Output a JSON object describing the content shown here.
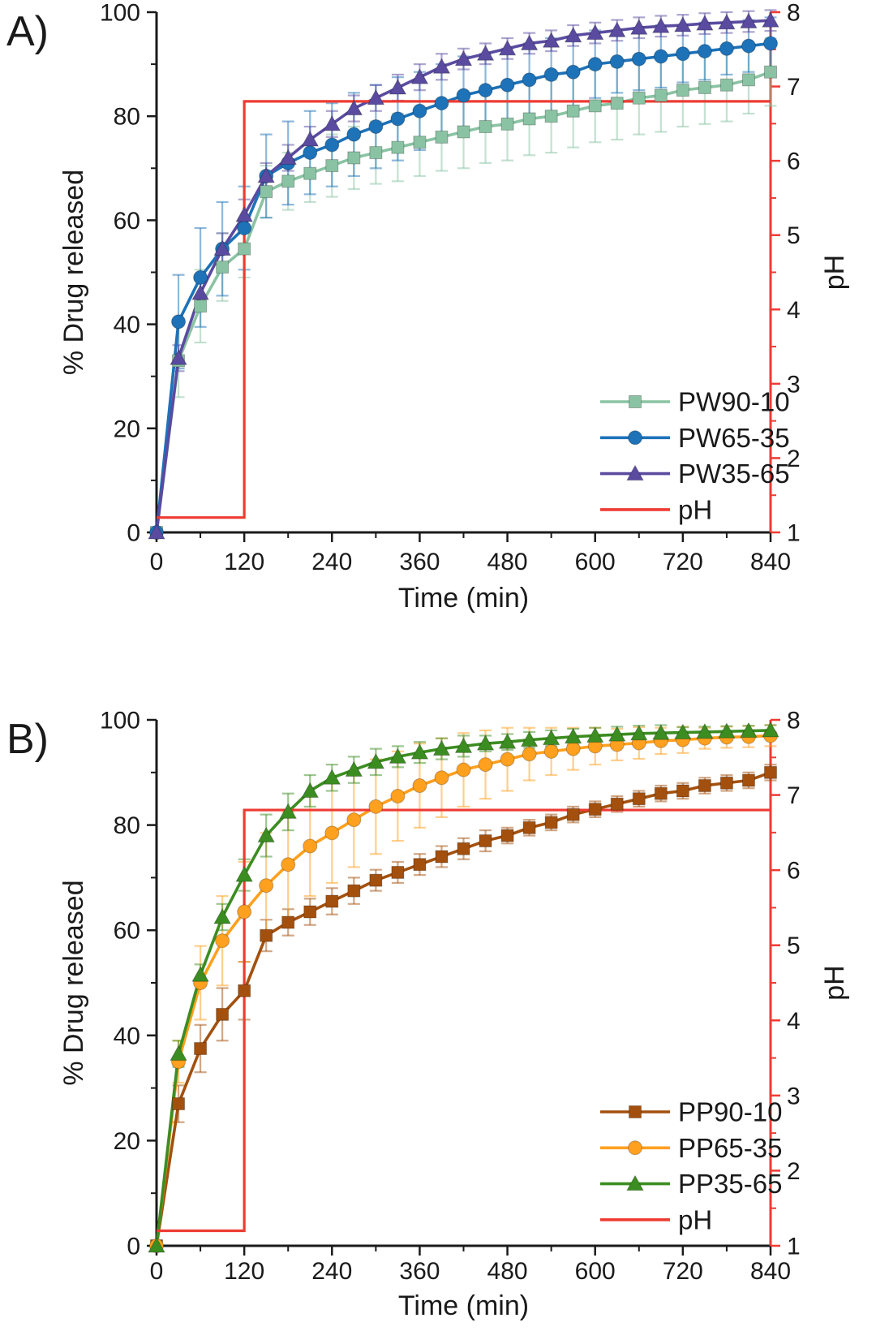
{
  "figure": {
    "background": "#ffffff"
  },
  "chart_data": [
    {
      "type": "line",
      "panel_label": "A)",
      "xlabel": "Time (min)",
      "ylabel": "% Drug released",
      "y2label": "pH",
      "xlim": [
        0,
        840
      ],
      "ylim": [
        0,
        100
      ],
      "y2lim": [
        1,
        8
      ],
      "xticks": [
        0,
        120,
        240,
        360,
        480,
        600,
        720,
        840
      ],
      "x_minor_step": 60,
      "yticks": [
        0,
        20,
        40,
        60,
        80,
        100
      ],
      "y_minor_step": 10,
      "y2ticks": [
        1,
        2,
        3,
        4,
        5,
        6,
        7,
        8
      ],
      "y2_minor_step": 0.5,
      "x": [
        0,
        30,
        60,
        90,
        120,
        150,
        180,
        210,
        240,
        270,
        300,
        330,
        360,
        390,
        420,
        450,
        480,
        510,
        540,
        570,
        600,
        630,
        660,
        690,
        720,
        750,
        780,
        810,
        840
      ],
      "series": [
        {
          "name": "PW90-10",
          "color": "#8ac3a3",
          "marker": "square",
          "values": [
            0,
            33,
            43.5,
            51,
            54.5,
            65.5,
            67.5,
            69,
            70.5,
            72,
            73,
            74,
            75,
            76,
            77,
            78,
            78.5,
            79.5,
            80,
            81,
            82,
            82.5,
            83.5,
            84,
            85,
            85.5,
            86,
            87,
            88.5
          ],
          "errors": [
            0,
            7,
            7,
            6.5,
            5.5,
            5,
            5.5,
            5.5,
            6,
            6,
            6,
            6.5,
            6.5,
            6.5,
            7,
            7,
            7,
            7,
            7,
            7,
            7,
            7,
            7,
            7,
            7,
            7,
            7,
            6.5,
            6.5
          ]
        },
        {
          "name": "PW65-35",
          "color": "#1d72b8",
          "marker": "circle",
          "values": [
            0,
            40.5,
            49,
            54.5,
            58.5,
            68.5,
            71,
            73,
            74.5,
            76.5,
            78,
            79.5,
            81,
            82.5,
            84,
            85,
            86,
            87,
            88,
            88.5,
            90,
            90.5,
            91,
            91.5,
            92,
            92.5,
            93,
            93.5,
            94
          ],
          "errors": [
            0,
            9,
            9.5,
            9,
            8,
            8,
            8,
            8,
            8,
            8,
            8,
            8,
            7.5,
            7.5,
            7.5,
            7,
            7,
            7,
            7,
            6.5,
            6.5,
            6,
            6,
            6,
            5.5,
            5.5,
            5,
            5,
            5
          ]
        },
        {
          "name": "PW35-65",
          "color": "#5a4ba0",
          "marker": "triangle",
          "values": [
            0,
            33.5,
            46,
            54.5,
            61,
            68.5,
            72,
            75.5,
            78.5,
            81.5,
            83.5,
            85.5,
            87.5,
            89.5,
            91,
            92,
            93,
            94,
            94.5,
            95.5,
            96,
            96.5,
            97,
            97.3,
            97.5,
            97.8,
            98,
            98.2,
            98.4
          ],
          "errors": [
            0,
            2.5,
            2.5,
            3,
            3,
            2.5,
            2.5,
            2.5,
            2.5,
            2.5,
            2.5,
            2.5,
            2.5,
            2.5,
            2,
            2,
            2,
            2,
            2,
            2,
            2,
            2,
            2,
            2,
            2,
            2,
            2,
            2,
            2
          ]
        }
      ],
      "ph": {
        "name": "pH",
        "color": "#ee3b33",
        "axis": "y2",
        "step_points": [
          [
            0,
            1.2
          ],
          [
            120,
            1.2
          ],
          [
            120,
            6.8
          ],
          [
            840,
            6.8
          ]
        ]
      },
      "legend": {
        "position": "bottom-right",
        "entries": [
          "PW90-10",
          "PW65-35",
          "PW35-65",
          "pH"
        ]
      }
    },
    {
      "type": "line",
      "panel_label": "B)",
      "xlabel": "Time (min)",
      "ylabel": "% Drug released",
      "y2label": "pH",
      "xlim": [
        0,
        840
      ],
      "ylim": [
        0,
        100
      ],
      "y2lim": [
        1,
        8
      ],
      "xticks": [
        0,
        120,
        240,
        360,
        480,
        600,
        720,
        840
      ],
      "x_minor_step": 60,
      "yticks": [
        0,
        20,
        40,
        60,
        80,
        100
      ],
      "y_minor_step": 10,
      "y2ticks": [
        1,
        2,
        3,
        4,
        5,
        6,
        7,
        8
      ],
      "y2_minor_step": 0.5,
      "x": [
        0,
        30,
        60,
        90,
        120,
        150,
        180,
        210,
        240,
        270,
        300,
        330,
        360,
        390,
        420,
        450,
        480,
        510,
        540,
        570,
        600,
        630,
        660,
        690,
        720,
        750,
        780,
        810,
        840
      ],
      "series": [
        {
          "name": "PP90-10",
          "color": "#a3500e",
          "marker": "square",
          "values": [
            0,
            27,
            37.5,
            44,
            48.5,
            59,
            61.5,
            63.5,
            65.5,
            67.5,
            69.5,
            71,
            72.5,
            74,
            75.5,
            77,
            78,
            79.5,
            80.5,
            82,
            83,
            84,
            85,
            86,
            86.5,
            87.5,
            88,
            88.5,
            90
          ],
          "errors": [
            0,
            3.5,
            4.5,
            5,
            5.5,
            3,
            2.5,
            2.5,
            2.5,
            2.5,
            2,
            2,
            2,
            2,
            2,
            2,
            1.5,
            1.5,
            1.5,
            1.5,
            1.5,
            1.5,
            1.5,
            1.5,
            1.5,
            1.5,
            1.5,
            1.5,
            1.5
          ]
        },
        {
          "name": "PP65-35",
          "color": "#ffa01e",
          "marker": "circle",
          "values": [
            0,
            35,
            50,
            58,
            63.5,
            68.5,
            72.5,
            76,
            78.5,
            81,
            83.5,
            85.5,
            87.5,
            89,
            90.5,
            91.5,
            92.5,
            93.5,
            94,
            94.5,
            95,
            95.3,
            95.6,
            96,
            96.2,
            96.5,
            96.7,
            96.8,
            97
          ],
          "errors": [
            0,
            4,
            7,
            8.5,
            9.5,
            10,
            10,
            9.5,
            9.5,
            9,
            9,
            8.5,
            8,
            7.5,
            7,
            6.5,
            6,
            5,
            4.5,
            4,
            3.5,
            3,
            3,
            2.5,
            2.5,
            2,
            2,
            2,
            2
          ]
        },
        {
          "name": "PP35-65",
          "color": "#3c8d21",
          "marker": "triangle",
          "values": [
            0,
            36.5,
            51.5,
            62.5,
            70.5,
            78,
            82.5,
            86.5,
            89,
            90.5,
            92,
            93,
            93.8,
            94.5,
            95,
            95.5,
            95.8,
            96.2,
            96.5,
            96.8,
            97,
            97.2,
            97.4,
            97.5,
            97.6,
            97.7,
            97.8,
            97.9,
            98
          ],
          "errors": [
            0,
            2.5,
            2,
            2.5,
            3,
            4,
            3.5,
            3,
            2.5,
            2.5,
            2.5,
            2,
            2,
            2,
            2,
            1.5,
            1.5,
            1.5,
            1.5,
            1.5,
            1.5,
            1.5,
            1.5,
            1.5,
            1,
            1,
            1,
            1,
            1
          ]
        }
      ],
      "ph": {
        "name": "pH",
        "color": "#ee3b33",
        "axis": "y2",
        "step_points": [
          [
            0,
            1.2
          ],
          [
            120,
            1.2
          ],
          [
            120,
            6.8
          ],
          [
            840,
            6.8
          ]
        ]
      },
      "legend": {
        "position": "bottom-right",
        "entries": [
          "PP90-10",
          "PP65-35",
          "PP35-65",
          "pH"
        ]
      }
    }
  ]
}
